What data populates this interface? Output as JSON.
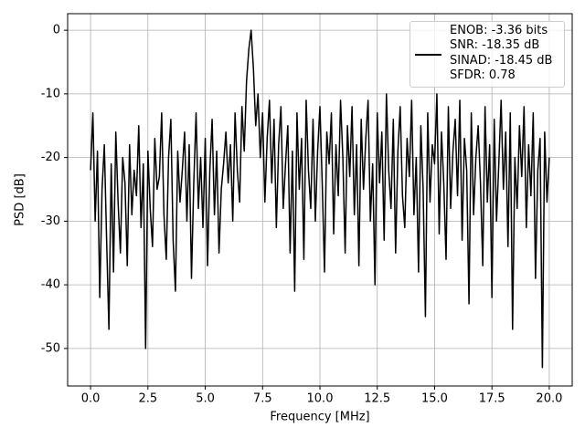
{
  "chart_data": {
    "type": "line",
    "xlabel": "Frequency [MHz]",
    "ylabel": "PSD [dB]",
    "xlim": [
      -1.0,
      21.0
    ],
    "ylim": [
      -55.9,
      2.6
    ],
    "xticks": [
      {
        "value": 0,
        "label": "0.0"
      },
      2.5,
      {
        "value": 5,
        "label": "5.0"
      },
      7.5,
      {
        "value": 10,
        "label": "10.0"
      },
      12.5,
      {
        "value": 15,
        "label": "15.0"
      },
      17.5,
      {
        "value": 20,
        "label": "20.0"
      }
    ],
    "yticks": [
      -50,
      -40,
      -30,
      -20,
      -10,
      0
    ],
    "grid": true,
    "legend": "upper right",
    "x": [
      0,
      0.1,
      0.2,
      0.3,
      0.4,
      0.5,
      0.6,
      0.7,
      0.8,
      0.9,
      1,
      1.1,
      1.2,
      1.3,
      1.4,
      1.5,
      1.6,
      1.7,
      1.8,
      1.9,
      2,
      2.1,
      2.2,
      2.3,
      2.4,
      2.5,
      2.6,
      2.7,
      2.8,
      2.9,
      3,
      3.1,
      3.2,
      3.3,
      3.4,
      3.5,
      3.6,
      3.7,
      3.8,
      3.9,
      4,
      4.1,
      4.2,
      4.3,
      4.4,
      4.5,
      4.6,
      4.7,
      4.8,
      4.9,
      5,
      5.1,
      5.2,
      5.3,
      5.4,
      5.5,
      5.6,
      5.7,
      5.8,
      5.9,
      6,
      6.1,
      6.2,
      6.3,
      6.4,
      6.5,
      6.6,
      6.7,
      6.8,
      6.9,
      7,
      7.1,
      7.2,
      7.3,
      7.4,
      7.5,
      7.6,
      7.7,
      7.8,
      7.9,
      8,
      8.1,
      8.2,
      8.3,
      8.4,
      8.5,
      8.6,
      8.7,
      8.8,
      8.9,
      9,
      9.1,
      9.2,
      9.3,
      9.4,
      9.5,
      9.6,
      9.7,
      9.8,
      9.9,
      10,
      10.1,
      10.2,
      10.3,
      10.4,
      10.5,
      10.6,
      10.7,
      10.8,
      10.9,
      11,
      11.1,
      11.2,
      11.3,
      11.4,
      11.5,
      11.6,
      11.7,
      11.8,
      11.9,
      12,
      12.1,
      12.2,
      12.3,
      12.4,
      12.5,
      12.6,
      12.7,
      12.8,
      12.9,
      13,
      13.1,
      13.2,
      13.3,
      13.4,
      13.5,
      13.6,
      13.7,
      13.8,
      13.9,
      14,
      14.1,
      14.2,
      14.3,
      14.4,
      14.5,
      14.6,
      14.7,
      14.8,
      14.9,
      15,
      15.1,
      15.2,
      15.3,
      15.4,
      15.5,
      15.6,
      15.7,
      15.8,
      15.9,
      16,
      16.1,
      16.2,
      16.3,
      16.4,
      16.5,
      16.6,
      16.7,
      16.8,
      16.9,
      17,
      17.1,
      17.2,
      17.3,
      17.4,
      17.5,
      17.6,
      17.7,
      17.8,
      17.9,
      18,
      18.1,
      18.2,
      18.3,
      18.4,
      18.5,
      18.6,
      18.7,
      18.8,
      18.9,
      19,
      19.1,
      19.2,
      19.3,
      19.4,
      19.5,
      19.6,
      19.7,
      19.8,
      19.9,
      20
    ],
    "series": [
      {
        "name": "ENOB: -3.36 bits\nSNR: -18.35 dB\nSINAD: -18.45 dB\nSFDR: 0.78",
        "color": "#000000",
        "values": [
          -22,
          -13,
          -30,
          -19,
          -42,
          -25,
          -18,
          -33,
          -47,
          -21,
          -38,
          -16,
          -27,
          -35,
          -20,
          -24,
          -37,
          -18,
          -29,
          -22,
          -26,
          -15,
          -31,
          -21,
          -50,
          -19,
          -28,
          -34,
          -17,
          -25,
          -23,
          -13,
          -29,
          -36,
          -20,
          -14,
          -33,
          -41,
          -19,
          -27,
          -22,
          -16,
          -30,
          -18,
          -39,
          -24,
          -13,
          -28,
          -20,
          -31,
          -17,
          -37,
          -22,
          -14,
          -29,
          -19,
          -35,
          -25,
          -21,
          -16,
          -24,
          -18,
          -30,
          -13,
          -22,
          -27,
          -12,
          -19,
          -8,
          -3,
          0,
          -6,
          -15,
          -10,
          -20,
          -13,
          -27,
          -17,
          -11,
          -24,
          -14,
          -31,
          -18,
          -12,
          -28,
          -21,
          -15,
          -35,
          -19,
          -41,
          -13,
          -25,
          -17,
          -36,
          -11,
          -22,
          -28,
          -14,
          -30,
          -19,
          -12,
          -24,
          -38,
          -16,
          -21,
          -13,
          -32,
          -18,
          -26,
          -11,
          -20,
          -35,
          -15,
          -23,
          -12,
          -29,
          -18,
          -37,
          -14,
          -25,
          -17,
          -11,
          -30,
          -21,
          -40,
          -13,
          -24,
          -16,
          -33,
          -10,
          -22,
          -28,
          -14,
          -35,
          -19,
          -12,
          -26,
          -31,
          -17,
          -23,
          -11,
          -29,
          -20,
          -38,
          -15,
          -25,
          -45,
          -13,
          -27,
          -18,
          -21,
          -10,
          -32,
          -16,
          -24,
          -36,
          -12,
          -28,
          -19,
          -14,
          -26,
          -11,
          -33,
          -17,
          -22,
          -43,
          -13,
          -29,
          -20,
          -15,
          -24,
          -37,
          -12,
          -27,
          -18,
          -42,
          -14,
          -30,
          -21,
          -11,
          -25,
          -16,
          -34,
          -13,
          -47,
          -20,
          -28,
          -15,
          -23,
          -12,
          -31,
          -18,
          -26,
          -13,
          -39,
          -22,
          -17,
          -53,
          -16,
          -27,
          -20
        ]
      }
    ]
  }
}
